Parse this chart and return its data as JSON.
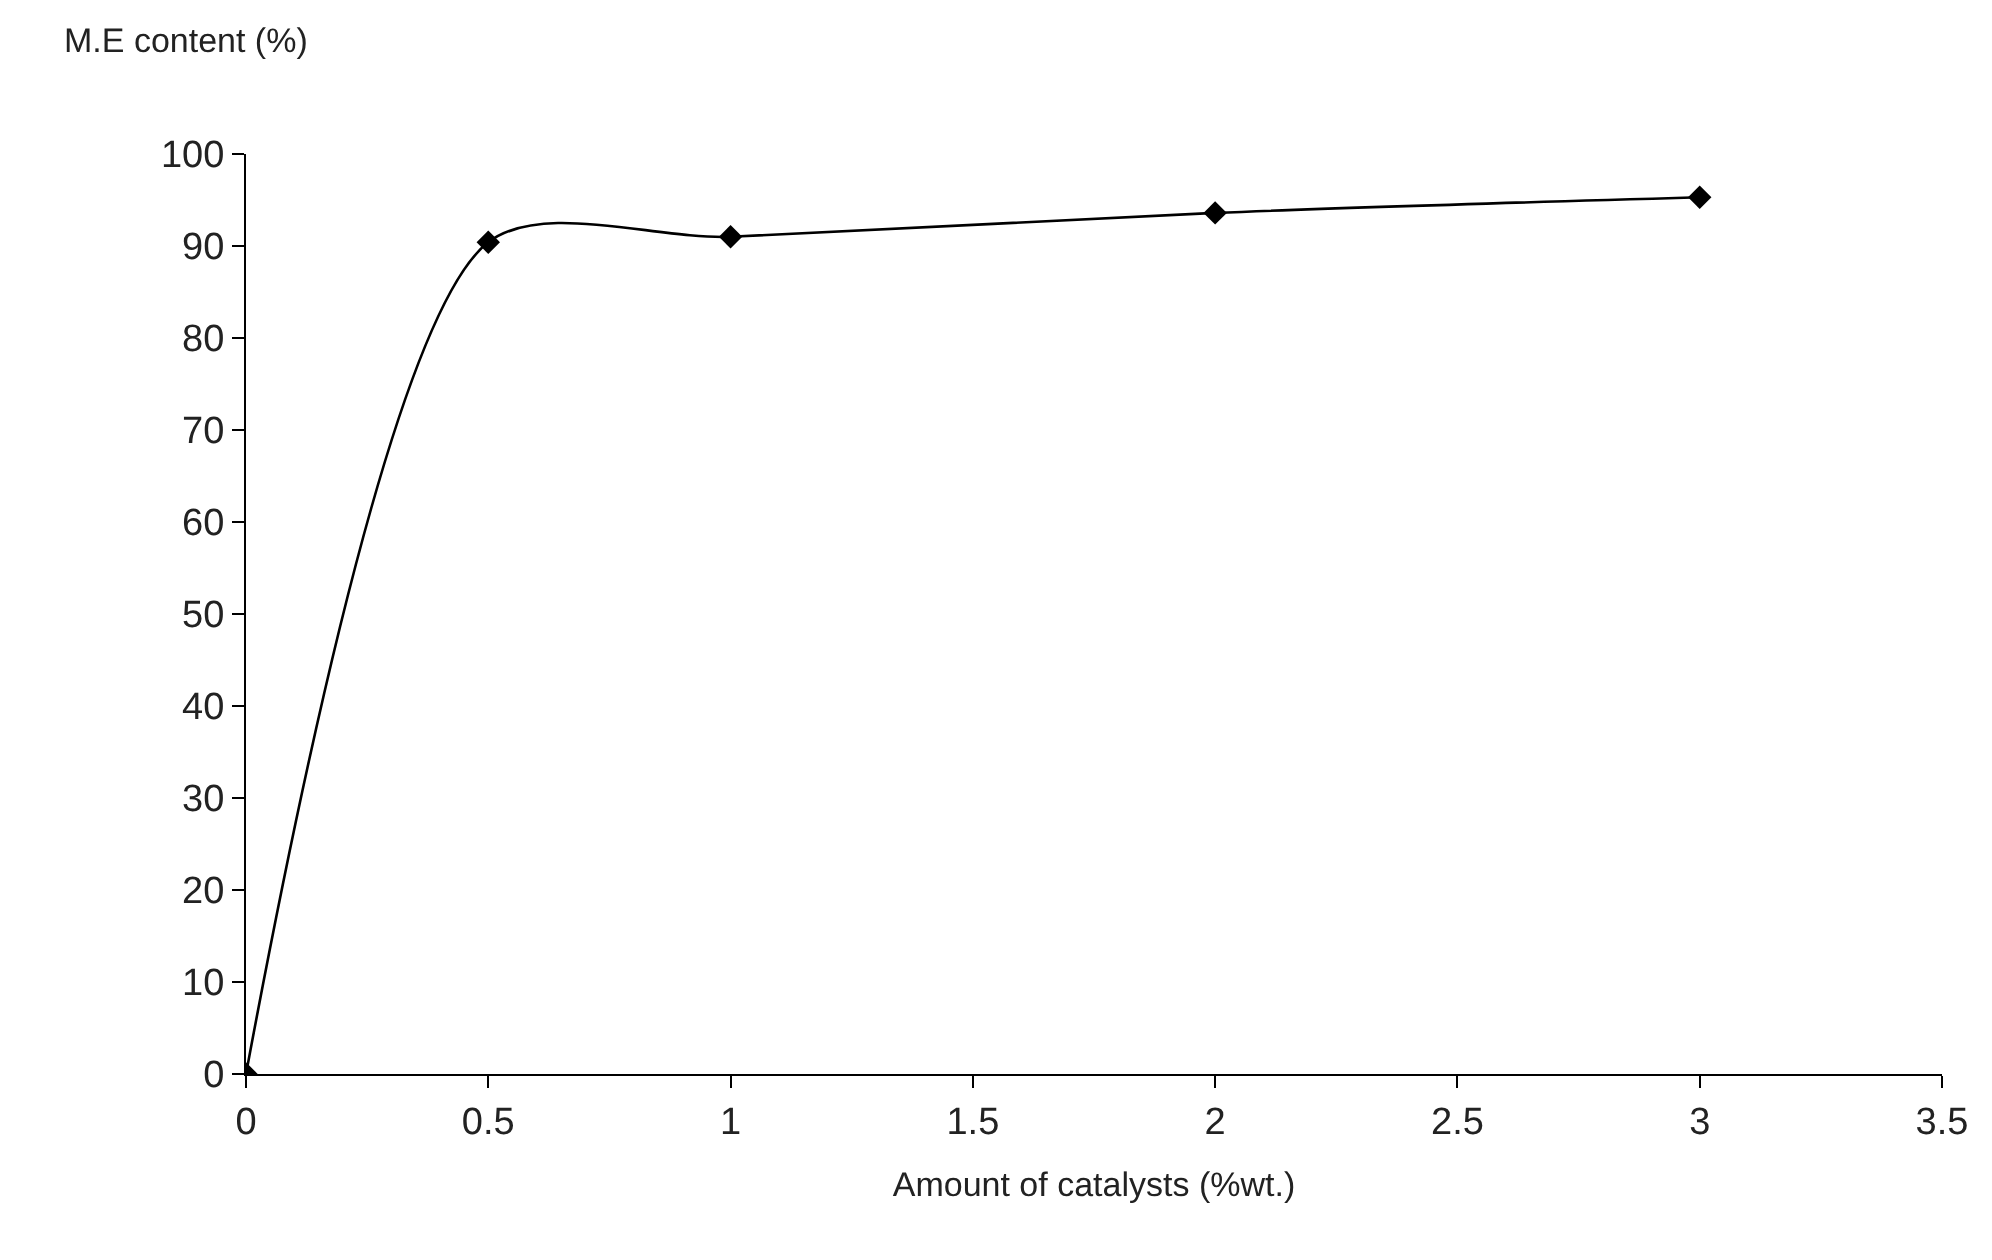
{
  "chart_data": {
    "type": "line",
    "ylabel": "M.E content (%)",
    "xlabel": "Amount of catalysts (%wt.)",
    "x": [
      0,
      0.5,
      1,
      2,
      3
    ],
    "series": [
      {
        "color": "#000000",
        "values": [
          0,
          90.4,
          91,
          93.6,
          95.3
        ]
      }
    ],
    "xlim": [
      0,
      3.5
    ],
    "xticks": [
      0,
      0.5,
      1,
      1.5,
      2,
      2.5,
      3,
      3.5
    ],
    "ylim": [
      0,
      100
    ],
    "yticks": [
      0,
      10,
      20,
      30,
      40,
      50,
      60,
      70,
      80,
      90,
      100
    ],
    "legend": false,
    "marker": "diamond",
    "line_style": "solid"
  }
}
